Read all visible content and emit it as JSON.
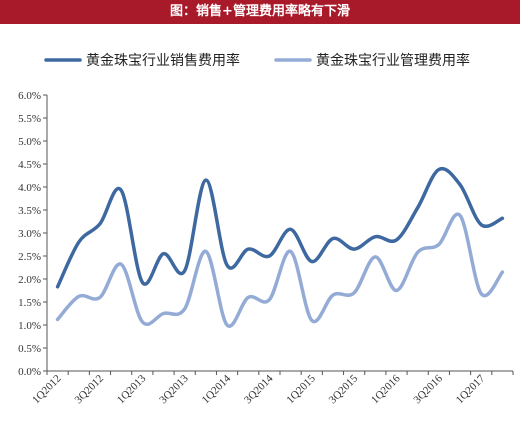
{
  "header": {
    "title": "图：销售+管理费用率略有下滑"
  },
  "colors": {
    "title_bg": "#a8192a",
    "sales": "#3e68a0",
    "admin": "#94abd6"
  },
  "chart_data": {
    "type": "line",
    "title": "",
    "xlabel": "",
    "ylabel": "",
    "ylim": [
      0,
      6
    ],
    "y_ticks": [
      "0.0%",
      "0.5%",
      "1.0%",
      "1.5%",
      "2.0%",
      "2.5%",
      "3.0%",
      "3.5%",
      "4.0%",
      "4.5%",
      "5.0%",
      "5.5%",
      "6.0%"
    ],
    "x_tick_labels": [
      "1Q2012",
      "3Q2012",
      "1Q2013",
      "3Q2013",
      "1Q2014",
      "3Q2014",
      "1Q2015",
      "3Q2015",
      "1Q2016",
      "3Q2016",
      "1Q2017"
    ],
    "legend_position": "top",
    "grid": false,
    "categories": [
      "1Q2012",
      "2Q2012",
      "3Q2012",
      "4Q2012",
      "1Q2013",
      "2Q2013",
      "3Q2013",
      "4Q2013",
      "1Q2014",
      "2Q2014",
      "3Q2014",
      "4Q2014",
      "1Q2015",
      "2Q2015",
      "3Q2015",
      "4Q2015",
      "1Q2016",
      "2Q2016",
      "3Q2016",
      "4Q2016",
      "1Q2017",
      "2Q2017"
    ],
    "series": [
      {
        "name": "黄金珠宝行业销售费用率",
        "values": [
          1.83,
          2.8,
          3.2,
          3.93,
          1.93,
          2.55,
          2.18,
          4.15,
          2.3,
          2.65,
          2.5,
          3.08,
          2.38,
          2.88,
          2.65,
          2.92,
          2.85,
          3.55,
          4.38,
          4.05,
          3.18,
          3.32
        ]
      },
      {
        "name": "黄金珠宝行业管理费用率",
        "values": [
          1.12,
          1.62,
          1.6,
          2.32,
          1.07,
          1.25,
          1.35,
          2.6,
          1.0,
          1.6,
          1.55,
          2.6,
          1.1,
          1.65,
          1.7,
          2.48,
          1.75,
          2.58,
          2.75,
          3.38,
          1.68,
          2.15
        ]
      }
    ]
  }
}
